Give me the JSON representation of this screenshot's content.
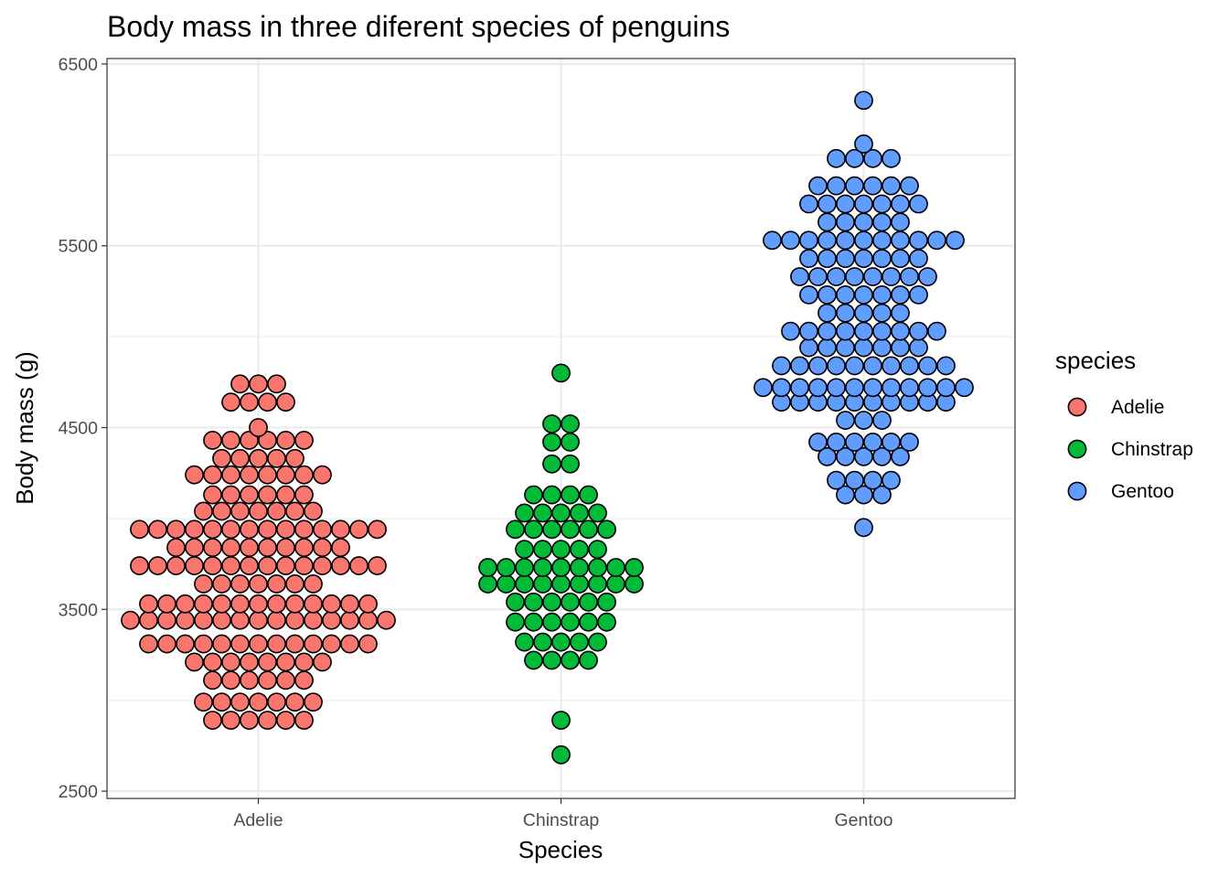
{
  "chart_data": {
    "type": "dotplot",
    "title": "Body mass in three diferent species of penguins",
    "xlabel": "Species",
    "ylabel": "Body mass (g)",
    "categories": [
      "Adelie",
      "Chinstrap",
      "Gentoo"
    ],
    "ylim": [
      2460,
      6530
    ],
    "yticks": [
      2500,
      3500,
      4500,
      5500,
      6500
    ],
    "y_minor_gridlines": [
      3000,
      4000,
      5000,
      6000
    ],
    "grid": true,
    "legend": {
      "title": "species",
      "placement": "right",
      "entries": [
        {
          "label": "Adelie",
          "color": "#F8766D"
        },
        {
          "label": "Chinstrap",
          "color": "#00BA38"
        },
        {
          "label": "Gentoo",
          "color": "#619CFF"
        }
      ]
    },
    "series": [
      {
        "name": "Adelie",
        "color": "#F8766D",
        "bins": [
          {
            "y": 2890,
            "count": 6
          },
          {
            "y": 2990,
            "count": 7
          },
          {
            "y": 3110,
            "count": 6
          },
          {
            "y": 3210,
            "count": 8
          },
          {
            "y": 3310,
            "count": 13
          },
          {
            "y": 3440,
            "count": 15
          },
          {
            "y": 3530,
            "count": 13
          },
          {
            "y": 3640,
            "count": 7
          },
          {
            "y": 3740,
            "count": 14
          },
          {
            "y": 3840,
            "count": 10
          },
          {
            "y": 3940,
            "count": 14
          },
          {
            "y": 4040,
            "count": 7
          },
          {
            "y": 4130,
            "count": 6
          },
          {
            "y": 4240,
            "count": 8
          },
          {
            "y": 4330,
            "count": 5
          },
          {
            "y": 4430,
            "count": 6
          },
          {
            "y": 4500,
            "count": 1
          },
          {
            "y": 4640,
            "count": 4
          },
          {
            "y": 4740,
            "count": 3
          }
        ]
      },
      {
        "name": "Chinstrap",
        "color": "#00BA38",
        "bins": [
          {
            "y": 2700,
            "count": 1
          },
          {
            "y": 2890,
            "count": 1
          },
          {
            "y": 3220,
            "count": 4
          },
          {
            "y": 3320,
            "count": 5
          },
          {
            "y": 3430,
            "count": 6
          },
          {
            "y": 3540,
            "count": 6
          },
          {
            "y": 3640,
            "count": 9
          },
          {
            "y": 3730,
            "count": 9
          },
          {
            "y": 3830,
            "count": 5
          },
          {
            "y": 3940,
            "count": 6
          },
          {
            "y": 4030,
            "count": 5
          },
          {
            "y": 4130,
            "count": 4
          },
          {
            "y": 4300,
            "count": 2
          },
          {
            "y": 4420,
            "count": 2
          },
          {
            "y": 4520,
            "count": 2
          },
          {
            "y": 4800,
            "count": 1
          }
        ]
      },
      {
        "name": "Gentoo",
        "color": "#619CFF",
        "bins": [
          {
            "y": 3950,
            "count": 1
          },
          {
            "y": 4130,
            "count": 3
          },
          {
            "y": 4210,
            "count": 4
          },
          {
            "y": 4340,
            "count": 5
          },
          {
            "y": 4420,
            "count": 6
          },
          {
            "y": 4540,
            "count": 3
          },
          {
            "y": 4640,
            "count": 10
          },
          {
            "y": 4720,
            "count": 12
          },
          {
            "y": 4840,
            "count": 10
          },
          {
            "y": 4940,
            "count": 7
          },
          {
            "y": 5030,
            "count": 9
          },
          {
            "y": 5130,
            "count": 5
          },
          {
            "y": 5230,
            "count": 7
          },
          {
            "y": 5330,
            "count": 8
          },
          {
            "y": 5430,
            "count": 7
          },
          {
            "y": 5530,
            "count": 11
          },
          {
            "y": 5630,
            "count": 5
          },
          {
            "y": 5730,
            "count": 7
          },
          {
            "y": 5830,
            "count": 6
          },
          {
            "y": 5980,
            "count": 4
          },
          {
            "y": 6060,
            "count": 1
          },
          {
            "y": 6300,
            "count": 1
          }
        ]
      }
    ]
  }
}
